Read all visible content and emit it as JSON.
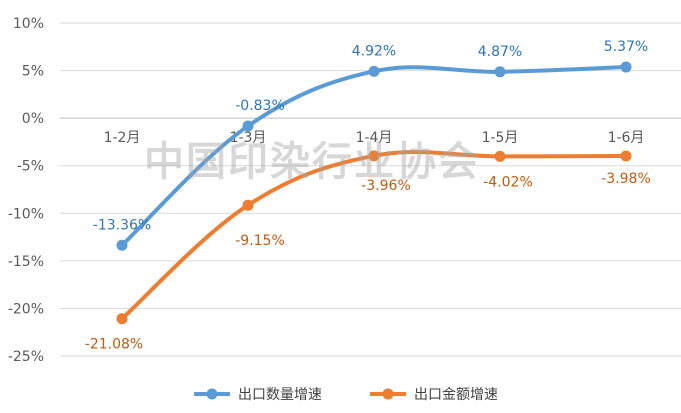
{
  "watermark": "中国印染行业协会",
  "chart_data": {
    "type": "line",
    "categories": [
      "1-2月",
      "1-3月",
      "1-4月",
      "1-5月",
      "1-6月"
    ],
    "ylim": [
      -25,
      10
    ],
    "y_ticks": [
      "10%",
      "5%",
      "0%",
      "-5%",
      "-10%",
      "-15%",
      "-20%",
      "-25%"
    ],
    "y_tick_values": [
      10,
      5,
      0,
      -5,
      -10,
      -15,
      -20,
      -25
    ],
    "grid": true,
    "legend_position": "bottom",
    "series": [
      {
        "name": "出口数量增速",
        "color": "#5B9BD5",
        "label_color": "#2E75B6",
        "values": [
          -13.36,
          -0.83,
          4.92,
          4.87,
          5.37
        ],
        "labels": [
          "-13.36%",
          "-0.83%",
          "4.92%",
          "4.87%",
          "5.37%"
        ]
      },
      {
        "name": "出口金额增速",
        "color": "#ED7D31",
        "label_color": "#C55A11",
        "values": [
          -21.08,
          -9.15,
          -3.96,
          -4.02,
          -3.98
        ],
        "labels": [
          "-21.08%",
          "-9.15%",
          "-3.96%",
          "-4.02%",
          "-3.98%"
        ]
      }
    ]
  }
}
